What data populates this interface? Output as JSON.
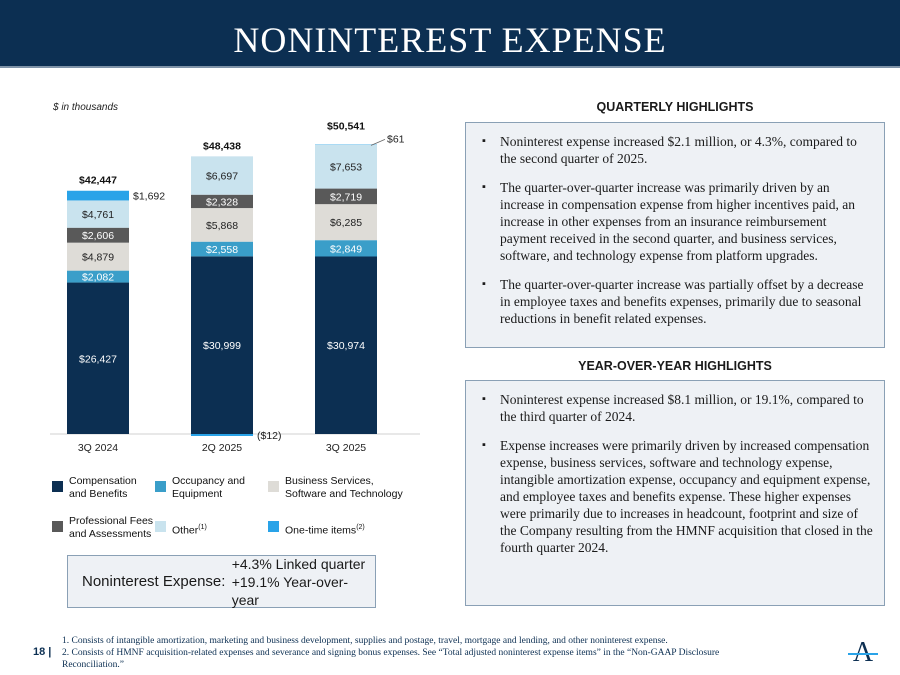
{
  "title": "NONINTEREST EXPENSE",
  "units_note": "$ in thousands",
  "colors": {
    "navy": "#0c2f52",
    "compensation": "#0c2f52",
    "occupancy": "#3a9ec9",
    "business": "#dedcd7",
    "professional": "#595959",
    "other": "#c9e3ee",
    "onetime": "#29a3e8"
  },
  "chart_data": {
    "type": "bar",
    "stacked": true,
    "categories": [
      "3Q 2024",
      "2Q 2025",
      "3Q 2025"
    ],
    "series": [
      {
        "name": "Compensation and Benefits",
        "key": "compensation",
        "values": [
          26427,
          30999,
          30974
        ],
        "labels": [
          "$26,427",
          "$30,999",
          "$30,974"
        ]
      },
      {
        "name": "Occupancy and Equipment",
        "key": "occupancy",
        "values": [
          2082,
          2558,
          2849
        ],
        "labels": [
          "$2,082",
          "$2,558",
          "$2,849"
        ]
      },
      {
        "name": "Business Services, Software and Technology",
        "key": "business",
        "values": [
          4879,
          5868,
          6285
        ],
        "labels": [
          "$4,879",
          "$5,868",
          "$6,285"
        ]
      },
      {
        "name": "Professional Fees and Assessments",
        "key": "professional",
        "values": [
          2606,
          2328,
          2719
        ],
        "labels": [
          "$2,606",
          "$2,328",
          "$2,719"
        ]
      },
      {
        "name": "Other",
        "key": "other",
        "values": [
          4761,
          6697,
          7653
        ],
        "labels": [
          "$4,761",
          "$6,697",
          "$7,653"
        ]
      },
      {
        "name": "One-time items",
        "key": "onetime",
        "values": [
          1692,
          -12,
          61
        ],
        "labels": [
          "$1,692",
          "($12)",
          "$61"
        ]
      }
    ],
    "totals": [
      42447,
      48438,
      50541
    ],
    "total_labels": [
      "$42,447",
      "$48,438",
      "$50,541"
    ],
    "ylim": [
      0,
      52000
    ],
    "ylabel": "$ in thousands"
  },
  "legend": [
    {
      "key": "compensation",
      "line1": "Compensation",
      "line2": "and Benefits",
      "sup": ""
    },
    {
      "key": "occupancy",
      "line1": "Occupancy and",
      "line2": "Equipment",
      "sup": ""
    },
    {
      "key": "business",
      "line1": "Business Services,",
      "line2": "Software and Technology",
      "sup": ""
    },
    {
      "key": "professional",
      "line1": "Professional Fees",
      "line2": "and Assessments",
      "sup": ""
    },
    {
      "key": "other",
      "line1": "Other",
      "line2": "",
      "sup": "(1)"
    },
    {
      "key": "onetime",
      "line1": "One-time items",
      "line2": "",
      "sup": "(2)"
    }
  ],
  "summary": {
    "label": "Noninterest Expense:",
    "linked": "+4.3% Linked quarter",
    "yoy": "+19.1% Year-over-year"
  },
  "quarterly": {
    "title": "QUARTERLY HIGHLIGHTS",
    "bullets": [
      "Noninterest expense increased $2.1 million, or 4.3%, compared to the second quarter of 2025.",
      "The quarter-over-quarter increase was primarily driven by an increase in compensation expense from higher incentives paid, an increase in other expenses from an insurance reimbursement payment received in the second quarter, and business services, software, and technology expense from platform upgrades.",
      "The quarter-over-quarter increase was partially offset by a decrease in employee taxes and benefits expenses, primarily due to seasonal reductions in benefit related expenses."
    ]
  },
  "yoy": {
    "title": "YEAR-OVER-YEAR HIGHLIGHTS",
    "bullets": [
      "Noninterest expense increased $8.1 million, or 19.1%, compared to the third quarter of 2024.",
      "Expense increases were primarily driven by increased compensation expense, business services, software and technology expense, intangible amortization expense, occupancy and equipment expense, and employee taxes and benefits expense.  These higher expenses were primarily due to increases in headcount, footprint and size of the Company resulting from the HMNF acquisition that closed in the fourth quarter 2024."
    ]
  },
  "page_number": "18 |",
  "footnotes": [
    "1. Consists of intangible amortization, marketing and business development, supplies and postage, travel, mortgage and lending, and other noninterest expense.",
    "2. Consists of HMNF acquisition-related expenses and severance and signing bonus expenses. See “Total adjusted noninterest expense items” in the “Non-GAAP Disclosure Reconciliation.”"
  ],
  "logo": {
    "letter": "A"
  }
}
